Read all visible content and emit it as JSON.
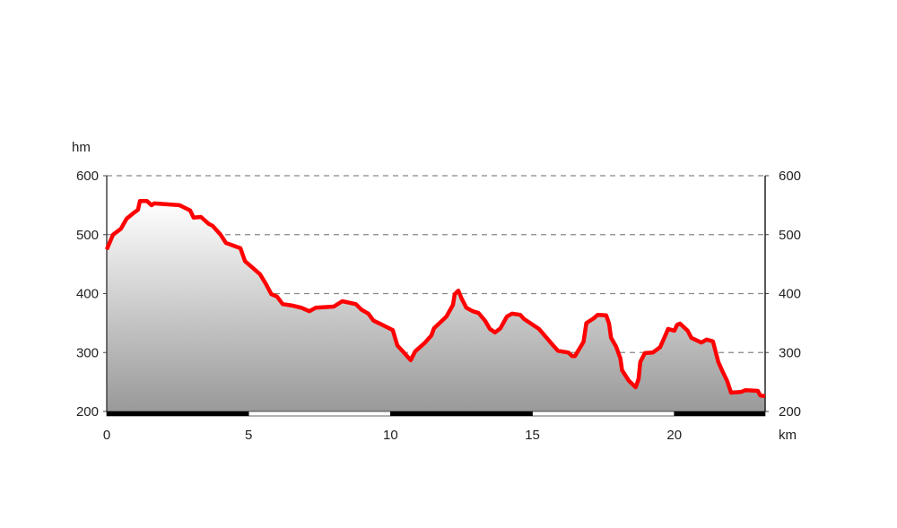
{
  "chart_data": {
    "type": "area",
    "title": "",
    "xlabel": "km",
    "ylabel": "hm",
    "xlim": [
      0,
      23.2
    ],
    "ylim": [
      200,
      600
    ],
    "x_ticks": [
      0,
      5,
      10,
      15,
      20
    ],
    "y_ticks": [
      200,
      300,
      400,
      500,
      600
    ],
    "grid": true,
    "grid_style": "dashed-horizontal",
    "colors": {
      "line": "#ff0000",
      "fill_top": "#ffffff",
      "fill_bottom": "#999999",
      "grid": "#888888"
    },
    "x": [
      0,
      0.22,
      0.5,
      0.7,
      0.98,
      1.1,
      1.17,
      1.42,
      1.58,
      1.67,
      2.56,
      2.65,
      2.94,
      3.06,
      3.32,
      3.6,
      3.73,
      4.01,
      4.2,
      4.71,
      4.87,
      5.4,
      5.6,
      5.8,
      6.0,
      6.2,
      6.5,
      6.86,
      7.14,
      7.36,
      8.0,
      8.3,
      8.78,
      8.97,
      9.22,
      9.4,
      9.67,
      10.08,
      10.24,
      10.43,
      10.71,
      10.87,
      11.2,
      11.44,
      11.53,
      11.97,
      12.2,
      12.26,
      12.39,
      12.5,
      12.67,
      12.9,
      13.1,
      13.33,
      13.5,
      13.68,
      13.87,
      14.1,
      14.28,
      14.57,
      14.7,
      15.23,
      15.48,
      15.73,
      15.9,
      16.27,
      16.4,
      16.5,
      16.8,
      16.9,
      17.16,
      17.3,
      17.6,
      17.7,
      17.77,
      17.95,
      18.1,
      18.16,
      18.4,
      18.64,
      18.74,
      18.8,
      18.96,
      19.24,
      19.5,
      19.7,
      19.78,
      20.0,
      20.1,
      20.2,
      20.47,
      20.6,
      20.95,
      21.14,
      21.36,
      21.55,
      21.7,
      21.86,
      22.0,
      22.34,
      22.5,
      22.94,
      23.03,
      23.2
    ],
    "y": [
      475,
      500,
      510,
      527,
      538,
      542,
      557,
      557,
      550,
      553,
      550,
      548,
      541,
      529,
      530,
      518,
      515,
      500,
      486,
      477,
      455,
      433,
      417,
      399,
      395,
      382,
      380,
      376,
      370,
      376,
      378,
      387,
      382,
      373,
      366,
      354,
      348,
      338,
      312,
      302,
      287,
      302,
      316,
      329,
      341,
      361,
      381,
      399,
      405,
      392,
      376,
      370,
      367,
      354,
      340,
      334,
      341,
      361,
      366,
      364,
      357,
      340,
      326,
      312,
      303,
      300,
      294,
      294,
      318,
      350,
      358,
      364,
      363,
      349,
      325,
      310,
      290,
      270,
      252,
      241,
      255,
      284,
      299,
      300,
      309,
      331,
      340,
      337,
      347,
      349,
      337,
      325,
      317,
      322,
      319,
      284,
      268,
      252,
      232,
      233,
      236,
      235,
      227,
      226
    ]
  }
}
